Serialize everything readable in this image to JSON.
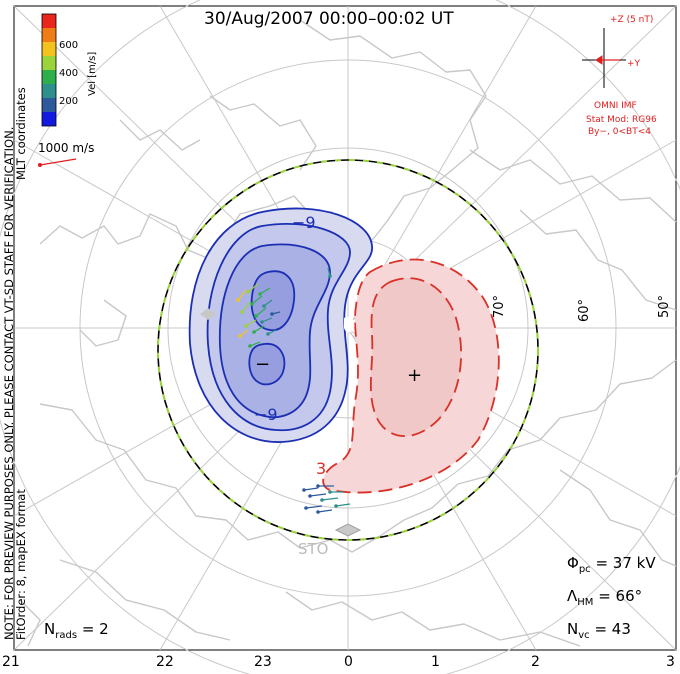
{
  "title": "30/Aug/2007 00:00–00:02 UT",
  "side_notes": {
    "preview": "NOTE: FOR PREVIEW PURPOSES ONLY. PLEASE CONTACT VT-SD STAFF FOR VERIFICATION.",
    "fit": "FitOrder: 8, mapEX format",
    "coords": "MLT coordinates"
  },
  "colorbar": {
    "label": "Vel [m/s]",
    "ticks": [
      "600",
      "400",
      "200"
    ],
    "colors": [
      "#e8261c",
      "#f07c17",
      "#f4c21e",
      "#9ad33a",
      "#2fae4c",
      "#2f8f8c",
      "#2e5a9b",
      "#1419e0"
    ]
  },
  "vector_scale": {
    "label": "1000 m/s"
  },
  "imf": {
    "z_label": "+Z (5 nT)",
    "y_label": "+Y",
    "source": "OMNI IMF",
    "stat_mod": "Stat Mod: RG96",
    "condition": "By−, 0<BT<4"
  },
  "latitude_labels": [
    "70°",
    "60°",
    "50°"
  ],
  "contour_labels": {
    "min1": "−9",
    "min2": "−9",
    "max": "3"
  },
  "extreme_markers": {
    "min": "−",
    "max": "+"
  },
  "radar": "STO",
  "stats": {
    "phi_sym": "Φ",
    "phi_sub": "pc",
    "phi_val": "= 37 kV",
    "lam_sym": "Λ",
    "lam_sub": "HM",
    "lam_val": "= 66°",
    "nvc_sym": "N",
    "nvc_sub": "vc",
    "nvc_val": "= 43",
    "nrads_sym": "N",
    "nrads_sub": "rads",
    "nrads_val": "= 2"
  },
  "mlt_ticks": [
    "21",
    "22",
    "23",
    "0",
    "1",
    "2",
    "3"
  ],
  "colors": {
    "land": "#c8c8c8",
    "grid": "#c8c8c8",
    "negative": "#1c2fb4",
    "positive": "#d93027",
    "boundary": "#000000",
    "boundary_dash": "#9ad33a"
  }
}
